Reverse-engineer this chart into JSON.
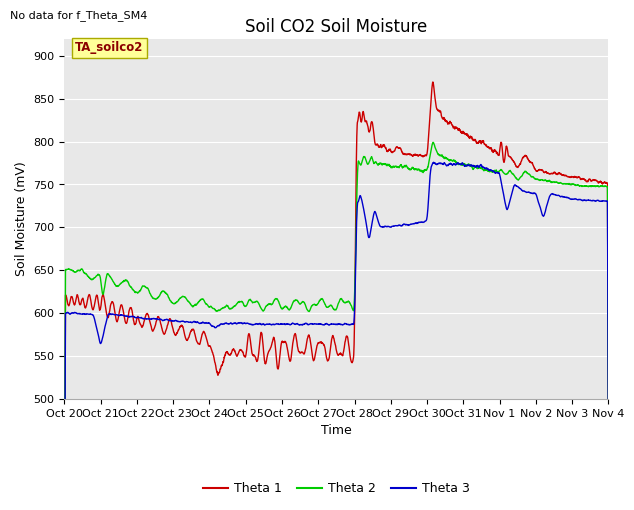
{
  "title": "Soil CO2 Soil Moisture",
  "xlabel": "Time",
  "ylabel": "Soil Moisture (mV)",
  "no_data_text": "No data for f_Theta_SM4",
  "legend_label": "TA_soilco2",
  "ylim": [
    500,
    920
  ],
  "yticks": [
    500,
    550,
    600,
    650,
    700,
    750,
    800,
    850,
    900
  ],
  "xtick_labels": [
    "Oct 20",
    "Oct 21",
    "Oct 22",
    "Oct 23",
    "Oct 24",
    "Oct 25",
    "Oct 26",
    "Oct 27",
    "Oct 28",
    "Oct 29",
    "Oct 30",
    "Oct 31",
    "Nov 1",
    "Nov 2",
    "Nov 3",
    "Nov 4"
  ],
  "line_colors": [
    "#cc0000",
    "#00cc00",
    "#0000cc"
  ],
  "line_labels": [
    "Theta 1",
    "Theta 2",
    "Theta 3"
  ],
  "background_color": "#e8e8e8",
  "legend_box_color": "#ffff99",
  "legend_box_edge": "#aaaa00",
  "title_fontsize": 12,
  "axis_label_fontsize": 9,
  "tick_fontsize": 8,
  "legend_fontsize": 9
}
